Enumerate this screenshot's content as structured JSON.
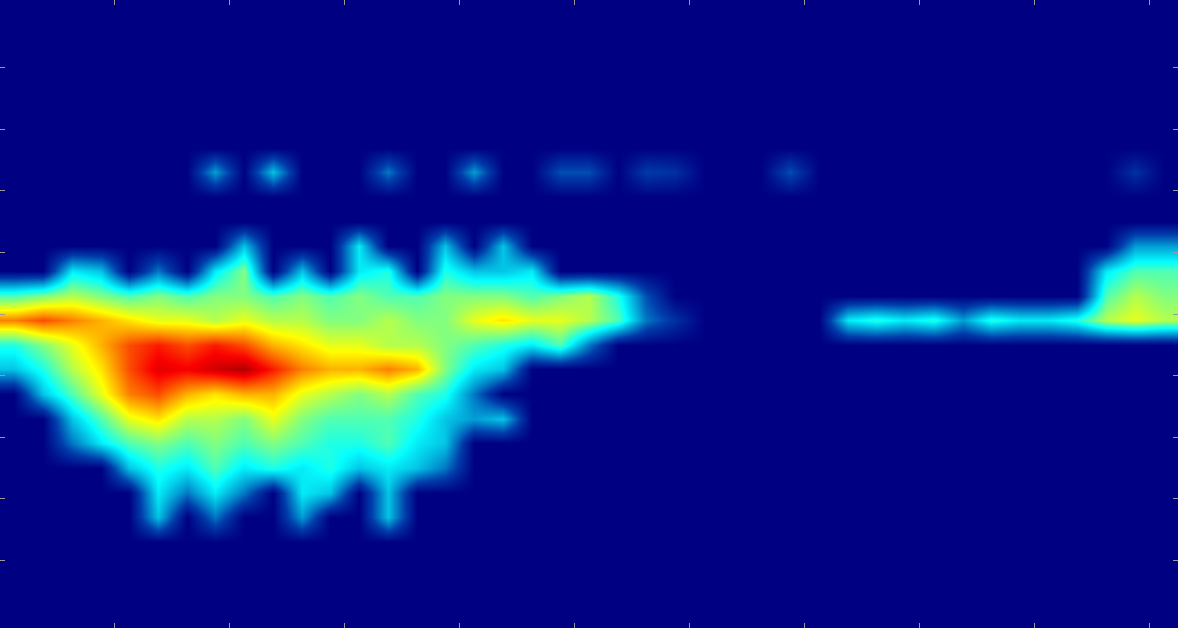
{
  "chart_data": {
    "type": "heatmap",
    "color": "Jet",
    "tick_labels": false,
    "xlim": [
      0,
      10.25
    ],
    "xticks": [
      1,
      2,
      3,
      4,
      5,
      6,
      7,
      8,
      9,
      10
    ],
    "ylim": [
      -0.1,
      10.1
    ],
    "yticks": [
      1,
      2,
      3,
      4,
      5,
      6,
      7,
      8,
      9
    ],
    "zlim": [
      0,
      1
    ],
    "x": [
      0.125,
      0.375,
      0.625,
      0.875,
      1.125,
      1.375,
      1.625,
      1.875,
      2.125,
      2.375,
      2.625,
      2.875,
      3.125,
      3.375,
      3.625,
      3.875,
      4.125,
      4.375,
      4.625,
      4.875,
      5.125,
      5.375,
      5.625,
      5.875,
      6.125,
      6.375,
      6.625,
      6.875,
      7.125,
      7.375,
      7.625,
      7.875,
      8.125,
      8.375,
      8.625,
      8.875,
      9.125,
      9.375,
      9.625,
      9.875,
      10.125
    ],
    "y": [
      0.1,
      0.5,
      0.9,
      1.3,
      1.7,
      2.1,
      2.5,
      2.9,
      3.3,
      3.7,
      4.1,
      4.5,
      4.9,
      5.3,
      5.7,
      6.1,
      6.5,
      6.9,
      7.3,
      7.7,
      8.1,
      8.5,
      8.9,
      9.3,
      9.7,
      10.1
    ],
    "z": [
      [
        0,
        0,
        0,
        0,
        0,
        0,
        0,
        0,
        0,
        0,
        0,
        0,
        0,
        0,
        0,
        0,
        0,
        0,
        0,
        0,
        0,
        0,
        0,
        0,
        0,
        0,
        0,
        0,
        0,
        0,
        0,
        0,
        0,
        0,
        0,
        0,
        0,
        0,
        0,
        0,
        0
      ],
      [
        0,
        0,
        0,
        0,
        0,
        0,
        0,
        0,
        0,
        0,
        0,
        0,
        0,
        0,
        0,
        0,
        0,
        0,
        0,
        0,
        0,
        0,
        0,
        0,
        0,
        0,
        0,
        0,
        0,
        0,
        0,
        0,
        0,
        0,
        0,
        0,
        0,
        0,
        0,
        0,
        0
      ],
      [
        0,
        0,
        0,
        0,
        0,
        0,
        0,
        0,
        0,
        0,
        0,
        0,
        0,
        0,
        0,
        0,
        0,
        0,
        0,
        0,
        0,
        0,
        0,
        0,
        0,
        0,
        0,
        0,
        0,
        0,
        0,
        0,
        0,
        0,
        0,
        0,
        0,
        0,
        0,
        0,
        0
      ],
      [
        0,
        0,
        0,
        0,
        0,
        0,
        0,
        0,
        0,
        0,
        0,
        0,
        0,
        0,
        0,
        0,
        0,
        0,
        0,
        0,
        0,
        0,
        0,
        0,
        0,
        0,
        0,
        0,
        0,
        0,
        0,
        0,
        0,
        0,
        0,
        0,
        0,
        0,
        0,
        0,
        0
      ],
      [
        0,
        0,
        0,
        0,
        0,
        0.3,
        0,
        0.2,
        0,
        0,
        0.25,
        0,
        0,
        0.3,
        0,
        0,
        0,
        0,
        0,
        0,
        0,
        0,
        0,
        0,
        0,
        0,
        0,
        0,
        0,
        0,
        0,
        0,
        0,
        0,
        0,
        0,
        0,
        0,
        0,
        0,
        0
      ],
      [
        0,
        0,
        0,
        0,
        0,
        0.35,
        0.2,
        0.35,
        0.2,
        0,
        0.35,
        0.3,
        0,
        0.3,
        0,
        0,
        0,
        0,
        0,
        0,
        0,
        0,
        0,
        0,
        0,
        0,
        0,
        0,
        0,
        0,
        0,
        0,
        0,
        0,
        0,
        0,
        0,
        0,
        0,
        0,
        0
      ],
      [
        0,
        0,
        0,
        0,
        0.3,
        0.4,
        0.35,
        0.45,
        0.35,
        0.4,
        0.35,
        0.4,
        0.3,
        0.35,
        0.3,
        0.2,
        0,
        0,
        0,
        0,
        0,
        0,
        0,
        0,
        0,
        0,
        0,
        0,
        0,
        0,
        0,
        0,
        0,
        0,
        0,
        0,
        0,
        0,
        0,
        0,
        0
      ],
      [
        0,
        0,
        0.2,
        0.35,
        0.45,
        0.5,
        0.45,
        0.5,
        0.45,
        0.5,
        0.45,
        0.4,
        0.4,
        0.45,
        0.35,
        0.3,
        0,
        0,
        0,
        0,
        0,
        0,
        0,
        0,
        0,
        0,
        0,
        0,
        0,
        0,
        0,
        0,
        0,
        0,
        0,
        0,
        0,
        0,
        0,
        0,
        0
      ],
      [
        0,
        0,
        0.3,
        0.45,
        0.6,
        0.65,
        0.55,
        0.55,
        0.5,
        0.6,
        0.5,
        0.45,
        0.45,
        0.45,
        0.4,
        0.3,
        0.25,
        0.3,
        0,
        0,
        0,
        0,
        0,
        0,
        0,
        0,
        0,
        0,
        0,
        0,
        0,
        0,
        0,
        0,
        0,
        0,
        0,
        0,
        0,
        0,
        0
      ],
      [
        0,
        0.3,
        0.45,
        0.6,
        0.75,
        0.8,
        0.7,
        0.65,
        0.7,
        0.7,
        0.6,
        0.55,
        0.5,
        0.55,
        0.45,
        0.4,
        0.2,
        0,
        0,
        0,
        0,
        0,
        0,
        0,
        0,
        0,
        0,
        0,
        0,
        0,
        0,
        0,
        0,
        0,
        0,
        0,
        0,
        0,
        0,
        0,
        0
      ],
      [
        0.3,
        0.4,
        0.55,
        0.65,
        0.8,
        0.9,
        0.88,
        0.92,
        0.95,
        0.85,
        0.75,
        0.7,
        0.7,
        0.75,
        0.7,
        0.5,
        0.35,
        0.3,
        0,
        0,
        0,
        0,
        0,
        0,
        0,
        0,
        0,
        0,
        0,
        0,
        0,
        0,
        0,
        0,
        0,
        0,
        0,
        0,
        0,
        0,
        0
      ],
      [
        0.4,
        0.5,
        0.6,
        0.7,
        0.8,
        0.85,
        0.8,
        0.85,
        0.8,
        0.7,
        0.65,
        0.6,
        0.6,
        0.55,
        0.55,
        0.5,
        0.45,
        0.4,
        0.35,
        0.45,
        0.2,
        0,
        0,
        0,
        0,
        0,
        0,
        0,
        0,
        0,
        0,
        0,
        0,
        0,
        0,
        0,
        0,
        0,
        0,
        0,
        0
      ],
      [
        0.75,
        0.8,
        0.75,
        0.7,
        0.65,
        0.6,
        0.6,
        0.55,
        0.6,
        0.55,
        0.55,
        0.5,
        0.5,
        0.55,
        0.5,
        0.5,
        0.6,
        0.65,
        0.6,
        0.6,
        0.55,
        0.45,
        0.2,
        0.1,
        0,
        0,
        0,
        0,
        0,
        0.35,
        0.4,
        0.35,
        0.4,
        0.25,
        0.4,
        0.35,
        0.35,
        0.4,
        0.55,
        0.6,
        0.55
      ],
      [
        0.45,
        0.5,
        0.55,
        0.5,
        0.45,
        0.5,
        0.45,
        0.5,
        0.5,
        0.45,
        0.5,
        0.45,
        0.5,
        0.45,
        0.45,
        0.5,
        0.5,
        0.5,
        0.45,
        0.5,
        0.55,
        0.4,
        0.15,
        0,
        0,
        0,
        0,
        0,
        0,
        0,
        0,
        0,
        0,
        0,
        0,
        0,
        0,
        0,
        0.45,
        0.55,
        0.5
      ],
      [
        0,
        0,
        0.35,
        0.3,
        0,
        0.2,
        0,
        0.35,
        0.5,
        0,
        0.3,
        0,
        0.35,
        0.4,
        0,
        0.4,
        0.3,
        0.3,
        0.35,
        0,
        0,
        0,
        0,
        0,
        0,
        0,
        0,
        0,
        0,
        0,
        0,
        0,
        0,
        0,
        0,
        0,
        0,
        0,
        0.35,
        0.45,
        0.45
      ],
      [
        0,
        0,
        0,
        0,
        0,
        0,
        0,
        0,
        0.3,
        0,
        0,
        0,
        0.35,
        0,
        0,
        0.3,
        0,
        0.3,
        0,
        0,
        0,
        0,
        0,
        0,
        0,
        0,
        0,
        0,
        0,
        0,
        0,
        0,
        0,
        0,
        0,
        0,
        0,
        0,
        0,
        0.25,
        0.25
      ],
      [
        0,
        0,
        0,
        0,
        0,
        0,
        0,
        0,
        0,
        0,
        0,
        0,
        0,
        0,
        0,
        0,
        0,
        0,
        0,
        0,
        0,
        0,
        0,
        0,
        0,
        0,
        0,
        0,
        0,
        0,
        0,
        0,
        0,
        0,
        0,
        0,
        0,
        0,
        0,
        0,
        0
      ],
      [
        0,
        0,
        0,
        0,
        0,
        0,
        0,
        0,
        0,
        0,
        0,
        0,
        0,
        0,
        0,
        0,
        0,
        0,
        0,
        0,
        0,
        0,
        0,
        0,
        0,
        0,
        0,
        0,
        0,
        0,
        0,
        0,
        0,
        0,
        0,
        0,
        0,
        0,
        0,
        0,
        0
      ],
      [
        0,
        0,
        0,
        0,
        0,
        0,
        0,
        0.25,
        0,
        0.3,
        0,
        0,
        0,
        0.2,
        0,
        0,
        0.25,
        0,
        0,
        0.15,
        0.15,
        0,
        0.12,
        0.1,
        0,
        0,
        0,
        0.15,
        0,
        0,
        0,
        0,
        0,
        0,
        0,
        0,
        0,
        0,
        0,
        0.1,
        0
      ],
      [
        0,
        0,
        0,
        0,
        0,
        0,
        0,
        0,
        0,
        0,
        0,
        0,
        0,
        0,
        0,
        0,
        0,
        0,
        0,
        0,
        0,
        0,
        0,
        0,
        0,
        0,
        0,
        0,
        0,
        0,
        0,
        0,
        0,
        0,
        0,
        0,
        0,
        0,
        0,
        0,
        0
      ],
      [
        0,
        0,
        0,
        0,
        0,
        0,
        0,
        0,
        0,
        0,
        0,
        0,
        0,
        0,
        0,
        0,
        0,
        0,
        0,
        0,
        0,
        0,
        0,
        0,
        0,
        0,
        0,
        0,
        0,
        0,
        0,
        0,
        0,
        0,
        0,
        0,
        0,
        0,
        0,
        0,
        0
      ],
      [
        0,
        0,
        0,
        0,
        0,
        0,
        0,
        0,
        0,
        0,
        0,
        0,
        0,
        0,
        0,
        0,
        0,
        0,
        0,
        0,
        0,
        0,
        0,
        0,
        0,
        0,
        0,
        0,
        0,
        0,
        0,
        0,
        0,
        0,
        0,
        0,
        0,
        0,
        0,
        0,
        0
      ],
      [
        0,
        0,
        0,
        0,
        0,
        0,
        0,
        0,
        0,
        0,
        0,
        0,
        0,
        0,
        0,
        0,
        0,
        0,
        0,
        0,
        0,
        0,
        0,
        0,
        0,
        0,
        0,
        0,
        0,
        0,
        0,
        0,
        0,
        0,
        0,
        0,
        0,
        0,
        0,
        0,
        0
      ],
      [
        0,
        0,
        0,
        0,
        0,
        0,
        0,
        0,
        0,
        0,
        0,
        0,
        0,
        0,
        0,
        0,
        0,
        0,
        0,
        0,
        0,
        0,
        0,
        0,
        0,
        0,
        0,
        0,
        0,
        0,
        0,
        0,
        0,
        0,
        0,
        0,
        0,
        0,
        0,
        0,
        0
      ],
      [
        0,
        0,
        0,
        0,
        0,
        0,
        0,
        0,
        0,
        0,
        0,
        0,
        0,
        0,
        0,
        0,
        0,
        0,
        0,
        0,
        0,
        0,
        0,
        0,
        0,
        0,
        0,
        0,
        0,
        0,
        0,
        0,
        0,
        0,
        0,
        0,
        0,
        0,
        0,
        0,
        0
      ],
      [
        0,
        0,
        0,
        0,
        0,
        0,
        0,
        0,
        0,
        0,
        0,
        0,
        0,
        0,
        0,
        0,
        0,
        0,
        0,
        0,
        0,
        0,
        0,
        0,
        0,
        0,
        0,
        0,
        0,
        0,
        0,
        0,
        0,
        0,
        0,
        0,
        0,
        0,
        0,
        0,
        0
      ]
    ]
  }
}
